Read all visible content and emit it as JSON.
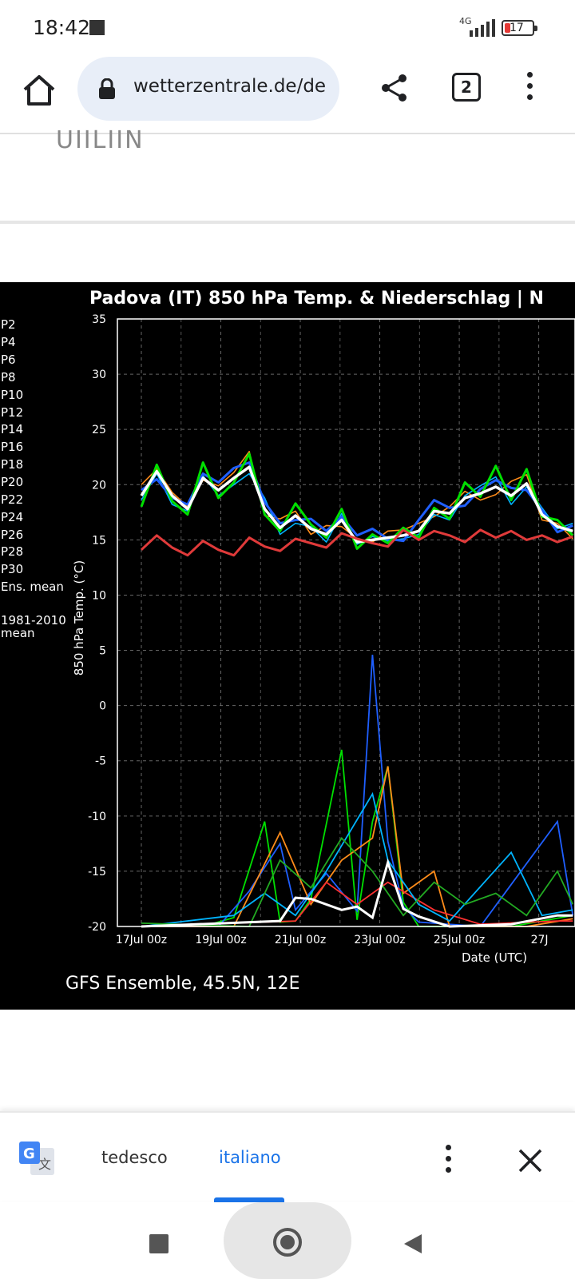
{
  "status": {
    "time": "18:42",
    "network": "4G",
    "battery": "17"
  },
  "browser": {
    "url": "wetterzentrale.de/de",
    "tab_count": "2"
  },
  "page": {
    "fragment_text": "UIILIIN"
  },
  "chart_data": {
    "type": "line",
    "title": "Padova  (IT)  850 hPa Temp. & Niederschlag | N",
    "subtitle": "GFS Ensemble, 45.5N, 12E",
    "ylabel": "850 hPa Temp. (°C)",
    "xlabel": "Date (UTC)",
    "ylim": [
      -20,
      35
    ],
    "yticks": [
      "35",
      "30",
      "25",
      "20",
      "15",
      "10",
      "5",
      "0",
      "-5",
      "-10",
      "-15",
      "-20"
    ],
    "xticks": [
      "17Jul 00z",
      "19Jul 00z",
      "21Jul 00z",
      "23Jul 00z",
      "25Jul 00z",
      "27J"
    ],
    "legend": [
      "P2",
      "P4",
      "P6",
      "P8",
      "P10",
      "P12",
      "P14",
      "P16",
      "P18",
      "P20",
      "P22",
      "P24",
      "P26",
      "P28",
      "P30",
      "Ens. mean",
      "1981-2010",
      "mean"
    ],
    "grid": true,
    "series": [
      {
        "name": "Ens. mean",
        "values": [
          19.0,
          21.2,
          19.0,
          17.8,
          20.6,
          19.5,
          20.6,
          21.6,
          17.8,
          16.1,
          17.2,
          16.0,
          15.5,
          16.8,
          14.8,
          15.0,
          15.2,
          15.4,
          15.8,
          17.6,
          17.4,
          18.8,
          19.2,
          19.8,
          19.0,
          20.1,
          17.3,
          16.2,
          15.8
        ]
      },
      {
        "name": "1981-2010 mean",
        "values": [
          14.1,
          15.4,
          14.3,
          13.6,
          14.9,
          14.1,
          13.6,
          15.2,
          14.4,
          14.0,
          15.1,
          14.7,
          14.3,
          15.6,
          15.1,
          14.7,
          14.4,
          15.9,
          15.0,
          15.8,
          15.4,
          14.8,
          15.9,
          15.2,
          15.8,
          15.0,
          15.4,
          14.8,
          15.3
        ]
      },
      {
        "name": "P2",
        "values": [
          18.0,
          21.8,
          18.5,
          17.3,
          22.0,
          18.8,
          20.2,
          22.8,
          17.3,
          15.8,
          18.3,
          16.4,
          15.2,
          17.8,
          14.2,
          15.5,
          14.7,
          16.1,
          15.2,
          17.9,
          16.9,
          20.2,
          18.9,
          21.7,
          18.6,
          21.4,
          17.1,
          16.8,
          15.4
        ]
      },
      {
        "name": "P4",
        "values": [
          19.5,
          20.5,
          18.8,
          18.2,
          21.0,
          20.2,
          21.5,
          22.0,
          18.4,
          16.5,
          16.8,
          16.9,
          15.8,
          17.1,
          15.4,
          16.0,
          15.1,
          14.9,
          16.8,
          18.6,
          17.9,
          18.1,
          19.6,
          20.4,
          19.7,
          19.5,
          17.7,
          15.7,
          16.3
        ]
      },
      {
        "name": "P6",
        "values": [
          20.0,
          21.4,
          19.3,
          18.0,
          20.4,
          19.9,
          21.1,
          23.0,
          17.2,
          16.9,
          17.6,
          15.5,
          16.3,
          16.2,
          15.1,
          14.8,
          15.8,
          15.9,
          16.5,
          17.1,
          18.0,
          19.4,
          18.6,
          19.1,
          20.3,
          20.9,
          16.8,
          16.5,
          15.1
        ]
      },
      {
        "name": "P8",
        "values": [
          18.6,
          21.0,
          18.2,
          17.6,
          20.8,
          19.0,
          20.0,
          21.0,
          18.8,
          15.5,
          16.5,
          16.2,
          14.8,
          17.4,
          14.6,
          15.3,
          14.9,
          15.1,
          15.5,
          17.3,
          16.8,
          19.0,
          19.9,
          20.7,
          18.2,
          19.8,
          17.9,
          16.0,
          16.5
        ]
      }
    ]
  },
  "translate_bar": {
    "source_lang": "tedesco",
    "target_lang": "italiano"
  }
}
